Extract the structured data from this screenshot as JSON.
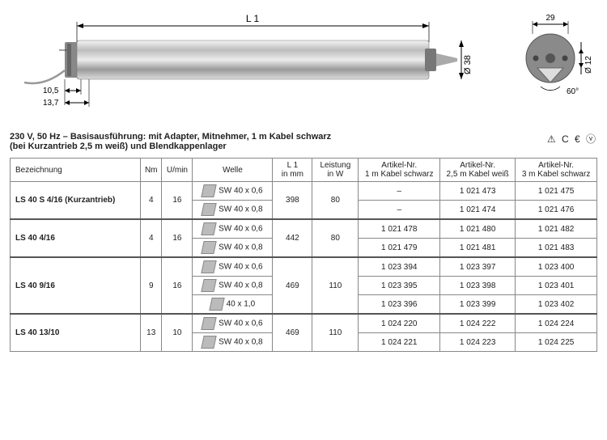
{
  "diagram": {
    "L1_label": "L 1",
    "dims_left": {
      "a": "10,5",
      "b": "13,7"
    },
    "dia_label": "Ø 38",
    "end": {
      "w": "29",
      "dia": "Ø 12",
      "angle": "60°"
    }
  },
  "header": {
    "line1": "230 V, 50 Hz – Basisausführung: mit Adapter, Mitnehmer, 1 m Kabel schwarz",
    "line2": "(bei Kurzantrieb 2,5 m weiß) und Blendkappenlager",
    "compliance": "⚠ C € ⓥ"
  },
  "columns": {
    "c0": "Bezeichnung",
    "c1": "Nm",
    "c2": "U/min",
    "c3": "Welle",
    "c4": "L 1\nin mm",
    "c5": "Leistung\nin W",
    "c6": "Artikel-Nr.\n1 m Kabel schwarz",
    "c7": "Artikel-Nr.\n2,5 m Kabel weiß",
    "c8": "Artikel-Nr.\n3 m Kabel schwarz"
  },
  "groups": [
    {
      "bez": "LS 40 S 4/16 (Kurzantrieb)",
      "nm": "4",
      "umin": "16",
      "l1": "398",
      "watt": "80",
      "rows": [
        {
          "welle": "SW 40 x 0,6",
          "a1": "–",
          "a2": "1 021 473",
          "a3": "1 021 475"
        },
        {
          "welle": "SW 40 x 0,8",
          "a1": "–",
          "a2": "1 021 474",
          "a3": "1 021 476"
        }
      ]
    },
    {
      "bez": "LS 40 4/16",
      "nm": "4",
      "umin": "16",
      "l1": "442",
      "watt": "80",
      "rows": [
        {
          "welle": "SW 40 x 0,6",
          "a1": "1 021 478",
          "a2": "1 021 480",
          "a3": "1 021 482"
        },
        {
          "welle": "SW 40 x 0,8",
          "a1": "1 021 479",
          "a2": "1 021 481",
          "a3": "1 021 483"
        }
      ]
    },
    {
      "bez": "LS 40 9/16",
      "nm": "9",
      "umin": "16",
      "l1": "469",
      "watt": "110",
      "rows": [
        {
          "welle": "SW 40 x 0,6",
          "a1": "1 023 394",
          "a2": "1 023 397",
          "a3": "1 023 400"
        },
        {
          "welle": "SW 40 x 0,8",
          "a1": "1 023 395",
          "a2": "1 023 398",
          "a3": "1 023 401"
        },
        {
          "welle": "40 x 1,0",
          "a1": "1 023 396",
          "a2": "1 023 399",
          "a3": "1 023 402"
        }
      ]
    },
    {
      "bez": "LS 40 13/10",
      "nm": "13",
      "umin": "10",
      "l1": "469",
      "watt": "110",
      "rows": [
        {
          "welle": "SW 40 x 0,6",
          "a1": "1 024 220",
          "a2": "1 024 222",
          "a3": "1 024 224"
        },
        {
          "welle": "SW 40 x 0,8",
          "a1": "1 024 221",
          "a2": "1 024 223",
          "a3": "1 024 225"
        }
      ]
    }
  ]
}
